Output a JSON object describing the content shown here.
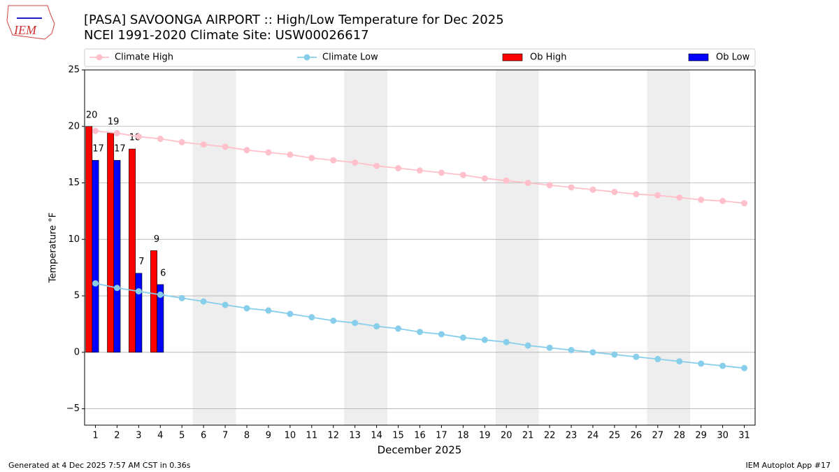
{
  "logo_text": "IEM",
  "footer_left": "Generated at 4 Dec 2025 7:57 AM CST in 0.36s",
  "footer_right": "IEM Autoplot App #17",
  "chart_data": {
    "type": "bar_line",
    "title": "[PASA] SAVOONGA AIRPORT :: High/Low Temperature for Dec 2025",
    "subtitle": "NCEI 1991-2020 Climate Site: USW00026617",
    "xlabel": "December 2025",
    "ylabel": "Temperature °F",
    "x": [
      1,
      2,
      3,
      4,
      5,
      6,
      7,
      8,
      9,
      10,
      11,
      12,
      13,
      14,
      15,
      16,
      17,
      18,
      19,
      20,
      21,
      22,
      23,
      24,
      25,
      26,
      27,
      28,
      29,
      30,
      31
    ],
    "xlim": [
      0.5,
      31.5
    ],
    "xticks": [
      1,
      2,
      3,
      4,
      5,
      6,
      7,
      8,
      9,
      10,
      11,
      12,
      13,
      14,
      15,
      16,
      17,
      18,
      19,
      20,
      21,
      22,
      23,
      24,
      25,
      26,
      27,
      28,
      29,
      30,
      31
    ],
    "ylim": [
      -6.45,
      25
    ],
    "yticks": [
      {
        "value": -5,
        "label": "−5"
      },
      0,
      5,
      10,
      15,
      20,
      25
    ],
    "grid": true,
    "shaded_ranges": [
      [
        5.5,
        7.5
      ],
      [
        12.5,
        14.5
      ],
      [
        19.5,
        21.5
      ],
      [
        26.5,
        28.5
      ]
    ],
    "shade_color": "#eeeeee",
    "lines": [
      {
        "name": "Climate High",
        "color": "#ffc0cb",
        "values": [
          19.6,
          19.4,
          19.1,
          18.9,
          18.6,
          18.4,
          18.2,
          17.9,
          17.7,
          17.5,
          17.2,
          17.0,
          16.8,
          16.5,
          16.3,
          16.1,
          15.9,
          15.7,
          15.4,
          15.2,
          15.0,
          14.8,
          14.6,
          14.4,
          14.2,
          14.0,
          13.9,
          13.7,
          13.5,
          13.4,
          13.2
        ]
      },
      {
        "name": "Climate Low",
        "color": "#87ceeb",
        "values": [
          6.1,
          5.7,
          5.4,
          5.1,
          4.8,
          4.5,
          4.2,
          3.9,
          3.7,
          3.4,
          3.1,
          2.8,
          2.6,
          2.3,
          2.1,
          1.8,
          1.6,
          1.3,
          1.1,
          0.9,
          0.6,
          0.4,
          0.2,
          0.0,
          -0.2,
          -0.4,
          -0.6,
          -0.8,
          -1.0,
          -1.2,
          -1.4
        ]
      }
    ],
    "bars": [
      {
        "name": "Ob High",
        "color": "#ff0000",
        "values": [
          20,
          19.4,
          18,
          9
        ],
        "value_labels": [
          "20",
          "19",
          "18",
          "9"
        ]
      },
      {
        "name": "Ob Low",
        "color": "#0000ff",
        "values": [
          17,
          17,
          7,
          6
        ],
        "value_labels": [
          "17",
          "17",
          "7",
          "6"
        ]
      }
    ]
  }
}
